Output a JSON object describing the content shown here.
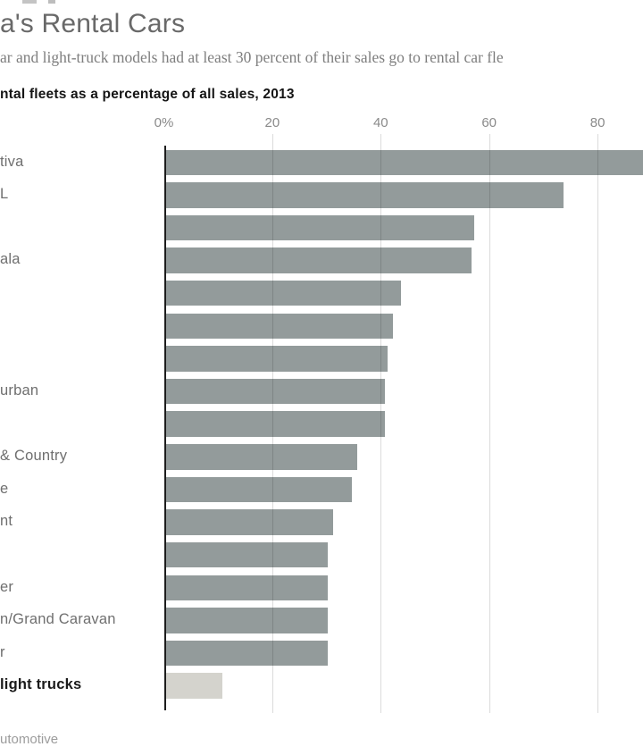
{
  "header": {
    "title": "a's Rental Cars",
    "subtitle": "ar and light-truck models had at least 30 percent of their sales go to rental car fle"
  },
  "source": "utomotive",
  "colors": {
    "bar": "#939b9b",
    "bar_highlight": "#d4d3cd",
    "axis_line": "#1d1d1d",
    "gridline": "rgba(0,0,0,0.14)",
    "title_text": "#696969",
    "subtitle_text": "#7e7e7e",
    "heading_text": "#151515",
    "tick_text": "#8a8a8a",
    "label_text": "#6f6f6f",
    "source_text": "#9c9c9c"
  },
  "chart_data": {
    "type": "bar",
    "orientation": "horizontal",
    "title": "ntal fleets as a percentage of all sales, 2013",
    "xlabel": "",
    "ylabel": "",
    "xlim": [
      0,
      94
    ],
    "grid": true,
    "legend": "none",
    "x_ticks": [
      {
        "value": 0,
        "label": "0%"
      },
      {
        "value": 20,
        "label": "20"
      },
      {
        "value": 40,
        "label": "40"
      },
      {
        "value": 60,
        "label": "60"
      },
      {
        "value": 80,
        "label": "80"
      }
    ],
    "bars": [
      {
        "label": "tiva",
        "value": 93,
        "highlight": false
      },
      {
        "label": "L",
        "value": 73.5,
        "highlight": false
      },
      {
        "label": "",
        "value": 57,
        "highlight": false
      },
      {
        "label": "ala",
        "value": 56.5,
        "highlight": false
      },
      {
        "label": "",
        "value": 43.5,
        "highlight": false
      },
      {
        "label": "",
        "value": 42,
        "highlight": false
      },
      {
        "label": "",
        "value": 41,
        "highlight": false
      },
      {
        "label": "urban",
        "value": 40.5,
        "highlight": false
      },
      {
        "label": "",
        "value": 40.5,
        "highlight": false
      },
      {
        "label": "& Country",
        "value": 35.5,
        "highlight": false
      },
      {
        "label": "e",
        "value": 34.5,
        "highlight": false
      },
      {
        "label": "nt",
        "value": 31,
        "highlight": false
      },
      {
        "label": "",
        "value": 30,
        "highlight": false
      },
      {
        "label": "er",
        "value": 30,
        "highlight": false
      },
      {
        "label": "n/Grand Caravan",
        "value": 30,
        "highlight": false
      },
      {
        "label": "r",
        "value": 30,
        "highlight": false
      },
      {
        "label": "light trucks",
        "value": 10.5,
        "highlight": true
      }
    ]
  }
}
